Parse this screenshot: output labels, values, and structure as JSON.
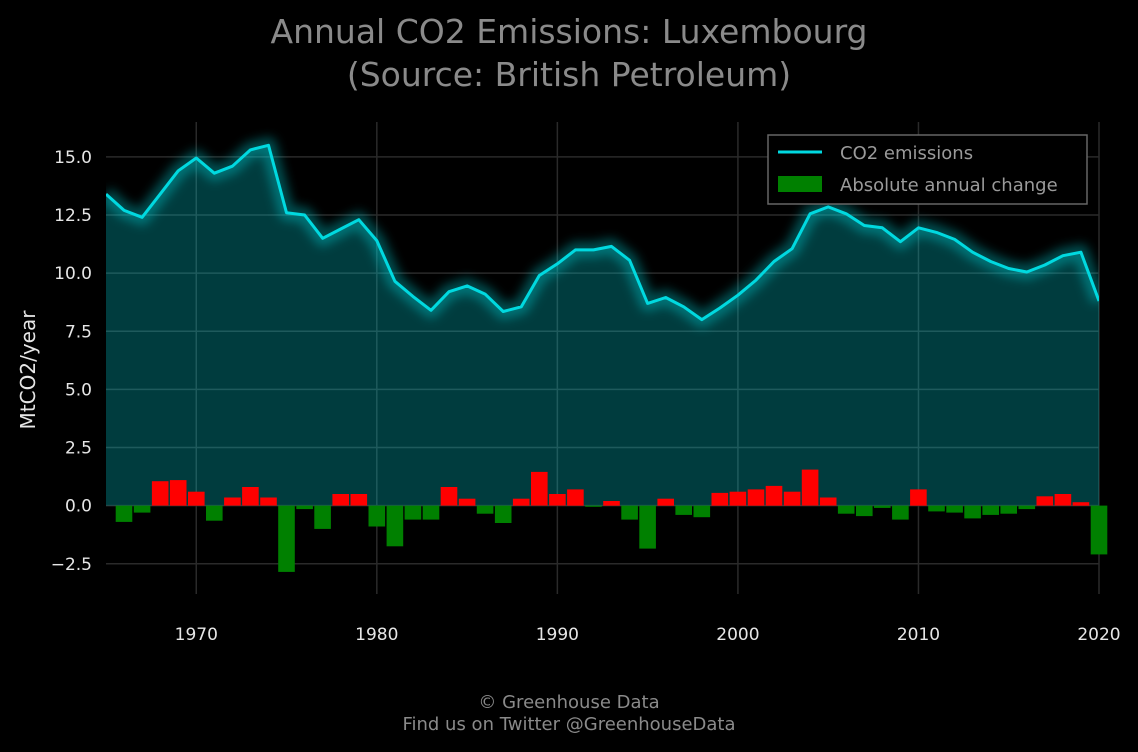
{
  "title_line1": "Annual CO2 Emissions: Luxembourg",
  "title_line2": "(Source: British Petroleum)",
  "footer_line1": "© Greenhouse Data",
  "footer_line2": "Find us on Twitter @GreenhouseData",
  "colors": {
    "background": "#000000",
    "line": "#00d9e0",
    "area": "#004444",
    "increase": "#ff0000",
    "decrease": "#008000",
    "grid": "#2a2a2a"
  },
  "chart_data": {
    "type": "line",
    "ylabel": "MtCO2/year",
    "xlim": [
      1965,
      2020
    ],
    "ylim": [
      -3.8,
      16.5
    ],
    "xticks": [
      1970,
      1980,
      1990,
      2000,
      2010,
      2020
    ],
    "xtick_labels": [
      "1970",
      "1980",
      "1990",
      "2000",
      "2010",
      "2020"
    ],
    "yticks": [
      -2.5,
      0,
      2.5,
      5,
      7.5,
      10,
      12.5,
      15
    ],
    "ytick_labels": [
      "−2.5",
      "0.0",
      "2.5",
      "5.0",
      "7.5",
      "10.0",
      "12.5",
      "15.0"
    ],
    "legend": {
      "position": "top-right",
      "entries": [
        "CO2 emissions",
        "Absolute annual change"
      ]
    },
    "series": [
      {
        "name": "CO2 emissions",
        "x": [
          1965,
          1966,
          1967,
          1968,
          1969,
          1970,
          1971,
          1972,
          1973,
          1974,
          1975,
          1976,
          1977,
          1978,
          1979,
          1980,
          1981,
          1982,
          1983,
          1984,
          1985,
          1986,
          1987,
          1988,
          1989,
          1990,
          1991,
          1992,
          1993,
          1994,
          1995,
          1996,
          1997,
          1998,
          1999,
          2000,
          2001,
          2002,
          2003,
          2004,
          2005,
          2006,
          2007,
          2008,
          2009,
          2010,
          2011,
          2012,
          2013,
          2014,
          2015,
          2016,
          2017,
          2018,
          2019,
          2020
        ],
        "values": [
          13.4,
          12.7,
          12.4,
          13.4,
          14.4,
          14.95,
          14.3,
          14.6,
          15.3,
          15.5,
          12.6,
          12.5,
          11.5,
          11.9,
          12.3,
          11.4,
          9.65,
          9.0,
          8.4,
          9.2,
          9.45,
          9.1,
          8.35,
          8.55,
          9.9,
          10.4,
          11.0,
          11.0,
          11.15,
          10.55,
          8.7,
          8.95,
          8.55,
          8.0,
          8.5,
          9.05,
          9.7,
          10.5,
          11.05,
          12.55,
          12.85,
          12.55,
          12.05,
          11.95,
          11.35,
          11.95,
          11.75,
          11.45,
          10.9,
          10.5,
          10.2,
          10.05,
          10.35,
          10.75,
          10.9,
          8.8
        ]
      },
      {
        "name": "Absolute annual change",
        "x": [
          1966,
          1967,
          1968,
          1969,
          1970,
          1971,
          1972,
          1973,
          1974,
          1975,
          1976,
          1977,
          1978,
          1979,
          1980,
          1981,
          1982,
          1983,
          1984,
          1985,
          1986,
          1987,
          1988,
          1989,
          1990,
          1991,
          1992,
          1993,
          1994,
          1995,
          1996,
          1997,
          1998,
          1999,
          2000,
          2001,
          2002,
          2003,
          2004,
          2005,
          2006,
          2007,
          2008,
          2009,
          2010,
          2011,
          2012,
          2013,
          2014,
          2015,
          2016,
          2017,
          2018,
          2019,
          2020
        ],
        "values": [
          -0.7,
          -0.3,
          1.05,
          1.1,
          0.6,
          -0.65,
          0.35,
          0.8,
          0.35,
          -2.85,
          -0.15,
          -1.0,
          0.5,
          0.5,
          -0.9,
          -1.75,
          -0.6,
          -0.6,
          0.8,
          0.3,
          -0.35,
          -0.75,
          0.3,
          1.45,
          0.5,
          0.7,
          -0.05,
          0.2,
          -0.6,
          -1.85,
          0.3,
          -0.4,
          -0.5,
          0.55,
          0.6,
          0.7,
          0.85,
          0.6,
          1.55,
          0.35,
          -0.35,
          -0.45,
          -0.1,
          -0.6,
          0.7,
          -0.25,
          -0.3,
          -0.55,
          -0.4,
          -0.35,
          -0.15,
          0.4,
          0.5,
          0.15,
          -2.1
        ]
      }
    ]
  }
}
